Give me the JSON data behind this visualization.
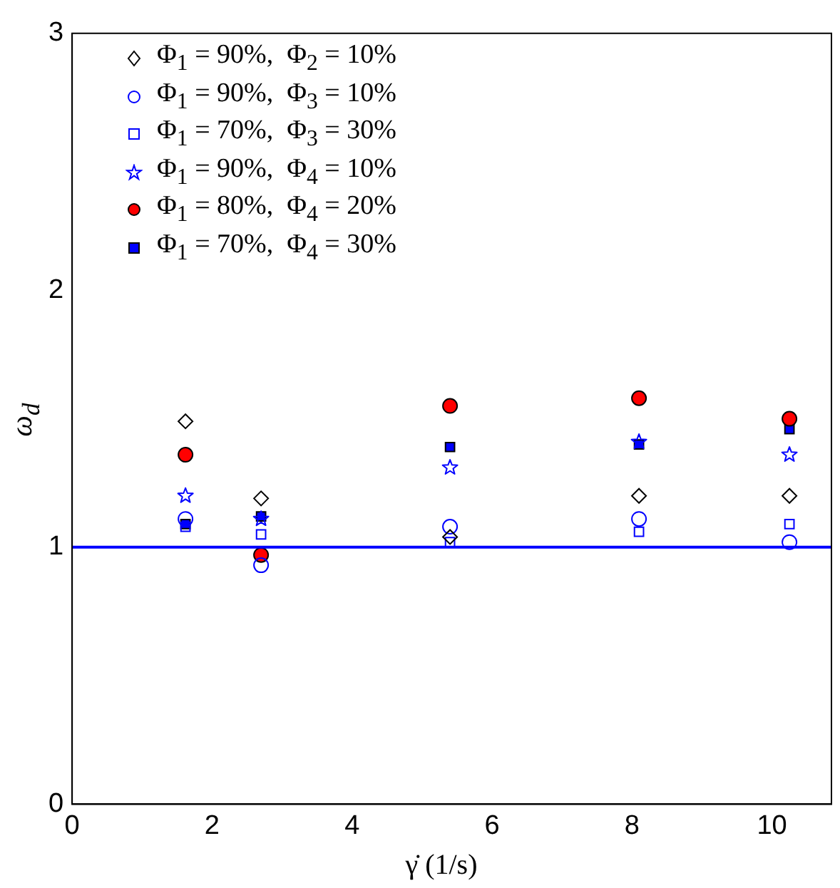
{
  "chart_data": {
    "type": "scatter",
    "xlabel": "γ̇ (1/s)",
    "ylabel": "ω$_{d}$",
    "xlim": [
      0,
      10.85
    ],
    "xticks": [
      0,
      2,
      4,
      6,
      8,
      10
    ],
    "ylim": [
      0,
      3
    ],
    "yticks": [
      0,
      1,
      2,
      3
    ],
    "x": [
      1.62,
      2.7,
      5.4,
      8.1,
      10.25
    ],
    "legend": "top left",
    "grid": false,
    "ref_lines": [
      {
        "axis": "y",
        "value": 1,
        "color": "#0000ff"
      }
    ],
    "series": [
      {
        "name": "Φ$_{1}$ = 90%,  Φ$_{2}$ = 10%",
        "color": "#000000",
        "marker": "diamond",
        "values": [
          1.49,
          1.19,
          1.04,
          1.2,
          1.2
        ]
      },
      {
        "name": "Φ$_{1}$ = 90%,  Φ$_{3}$ = 10%",
        "color": "#0000ff",
        "marker": "circle",
        "values": [
          1.11,
          0.93,
          1.08,
          1.11,
          1.02
        ]
      },
      {
        "name": "Φ$_{1}$ = 70%,  Φ$_{3}$ = 30%",
        "color": "#0000ff",
        "marker": "square",
        "values": [
          1.08,
          1.05,
          1.02,
          1.06,
          1.09
        ]
      },
      {
        "name": "Φ$_{1}$ = 90%,  Φ$_{4}$ = 10%",
        "color": "#0000ff",
        "marker": "star",
        "values": [
          1.2,
          1.11,
          1.31,
          1.41,
          1.36
        ]
      },
      {
        "name": "Φ$_{1}$ = 80%,  Φ$_{4}$ = 20%",
        "color": "#ff0000",
        "marker": "circle",
        "values": [
          1.36,
          0.97,
          1.55,
          1.58,
          1.5
        ]
      },
      {
        "name": "Φ$_{1}$ = 70%,  Φ$_{4}$ = 30%",
        "color": "#0000ff",
        "marker": "square",
        "values": [
          1.09,
          1.12,
          1.39,
          1.4,
          1.46
        ]
      }
    ]
  }
}
